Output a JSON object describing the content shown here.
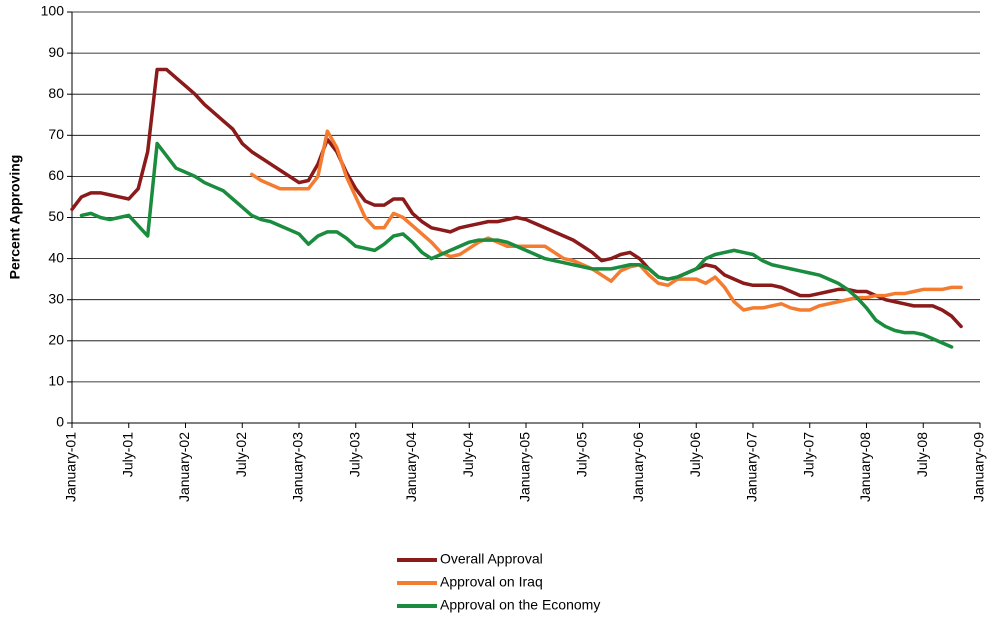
{
  "chart_data": {
    "type": "line",
    "y_label": "Percent Approving",
    "x": [
      "January-01",
      null,
      null,
      null,
      null,
      null,
      "July-01",
      null,
      null,
      null,
      null,
      null,
      "January-02",
      null,
      null,
      null,
      null,
      null,
      "July-02",
      null,
      null,
      null,
      null,
      null,
      "January-03",
      null,
      null,
      null,
      null,
      null,
      "July-03",
      null,
      null,
      null,
      null,
      null,
      "January-04",
      null,
      null,
      null,
      null,
      null,
      "July-04",
      null,
      null,
      null,
      null,
      null,
      "January-05",
      null,
      null,
      null,
      null,
      null,
      "July-05",
      null,
      null,
      null,
      null,
      null,
      "January-06",
      null,
      null,
      null,
      null,
      null,
      "July-06",
      null,
      null,
      null,
      null,
      null,
      "January-07",
      null,
      null,
      null,
      null,
      null,
      "July-07",
      null,
      null,
      null,
      null,
      null,
      "January-08",
      null,
      null,
      null,
      null,
      null,
      "July-08",
      null,
      null,
      null,
      null,
      null,
      "January-09"
    ],
    "series": [
      {
        "name": "Overall Approval",
        "color": "#8b1a1a",
        "values": [
          52,
          55,
          56,
          56,
          55.5,
          55,
          54.5,
          57,
          66,
          86,
          86,
          84,
          82,
          80,
          77.5,
          75.5,
          73.5,
          71.5,
          68,
          66,
          64.5,
          63,
          61.5,
          60,
          58.5,
          59,
          63,
          69,
          66,
          61,
          57,
          54,
          53,
          53,
          54.5,
          54.5,
          51,
          49,
          47.5,
          47,
          46.5,
          47.5,
          48,
          48.5,
          49,
          49,
          49.5,
          50,
          49.5,
          48.5,
          47.5,
          46.5,
          45.5,
          44.5,
          43,
          41.5,
          39.5,
          40,
          41,
          41.5,
          40,
          37.5,
          35.5,
          35,
          35.5,
          36.5,
          37.5,
          38.5,
          38,
          36,
          35,
          34,
          33.5,
          33.5,
          33.5,
          33,
          32,
          31,
          31,
          31.5,
          32,
          32.5,
          32.5,
          32,
          32,
          31,
          30,
          29.5,
          29,
          28.5,
          28.5,
          28.5,
          27.5,
          26,
          23.5,
          null,
          null
        ]
      },
      {
        "name": "Approval on Iraq",
        "color": "#f47c30",
        "values": [
          null,
          null,
          null,
          null,
          null,
          null,
          null,
          null,
          null,
          null,
          null,
          null,
          null,
          null,
          null,
          null,
          null,
          null,
          null,
          60.5,
          59,
          58,
          57,
          57,
          57,
          57,
          60,
          71,
          67,
          60,
          55,
          50,
          47.5,
          47.5,
          51,
          50,
          48,
          46,
          44,
          41.5,
          40.5,
          41,
          42.5,
          44,
          45,
          44,
          43,
          43,
          43,
          43,
          43,
          41.5,
          40,
          39.5,
          38.5,
          37.5,
          36,
          34.5,
          37,
          38,
          38.5,
          36,
          34,
          33.5,
          35,
          35,
          35,
          34,
          35.5,
          33,
          29.5,
          27.5,
          28,
          28,
          28.5,
          29,
          28,
          27.5,
          27.5,
          28.5,
          29,
          29.5,
          30,
          30.5,
          30.5,
          31,
          31,
          31.5,
          31.5,
          32,
          32.5,
          32.5,
          32.5,
          33,
          33,
          null,
          null
        ]
      },
      {
        "name": "Approval on the Economy",
        "color": "#1a8c3e",
        "values": [
          null,
          50.5,
          51,
          50,
          49.5,
          50,
          50.5,
          48,
          45.5,
          68,
          65,
          62,
          61,
          60,
          58.5,
          57.5,
          56.5,
          54.5,
          52.5,
          50.5,
          49.5,
          49,
          48,
          47,
          46,
          43.5,
          45.5,
          46.5,
          46.5,
          45,
          43,
          42.5,
          42,
          43.5,
          45.5,
          46,
          44,
          41.5,
          40,
          41,
          42,
          43,
          44,
          44.5,
          44.5,
          44.5,
          44,
          43,
          42,
          41,
          40,
          39.5,
          39,
          38.5,
          38,
          37.5,
          37.5,
          37.5,
          38,
          38.5,
          38.5,
          37.5,
          35.5,
          35,
          35.5,
          36.5,
          37.5,
          40,
          41,
          41.5,
          42,
          41.5,
          41,
          39.5,
          38.5,
          38,
          37.5,
          37,
          36.5,
          36,
          35,
          34,
          32.5,
          30.5,
          28,
          25,
          23.5,
          22.5,
          22,
          22,
          21.5,
          20.5,
          19.5,
          18.5,
          null,
          null,
          null
        ]
      }
    ],
    "ylim": [
      0,
      100
    ],
    "yticks": [
      0,
      10,
      20,
      30,
      40,
      50,
      60,
      70,
      80,
      90,
      100
    ],
    "grid": true,
    "legend": "bottom"
  }
}
